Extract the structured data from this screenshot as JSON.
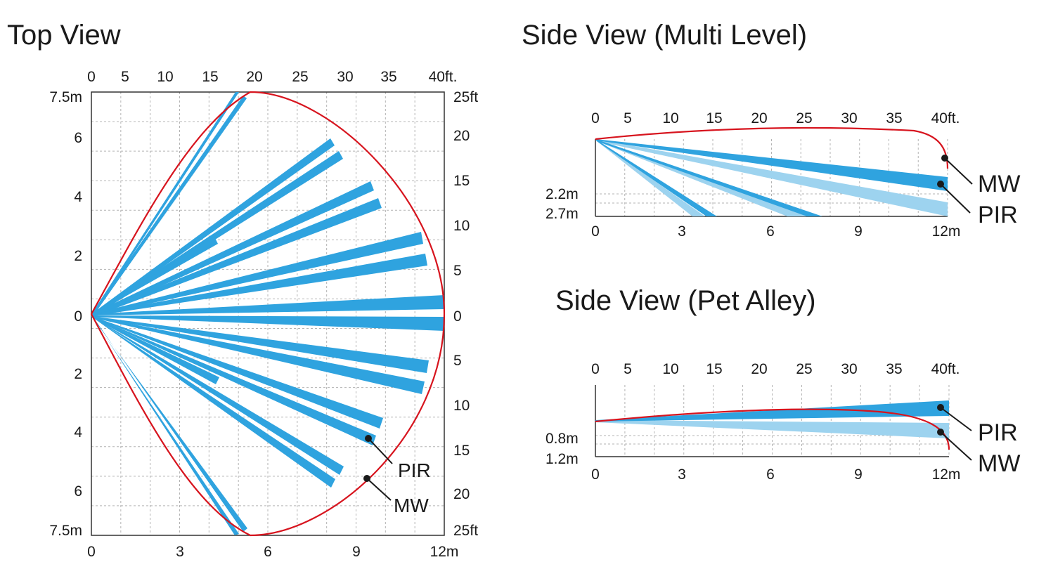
{
  "titles": {
    "top": "Top View",
    "multi": "Side View (Multi Level)",
    "pet": "Side View (Pet Alley)"
  },
  "colors": {
    "pir_dark": "#2fa3df",
    "pir_light": "#9dd3ef",
    "mw_line": "#d7141e",
    "grid": "#b3b3b3",
    "axis": "#333333",
    "text": "#1a1a1a"
  },
  "top_view": {
    "ft_ticks": [
      "0",
      "5",
      "10",
      "15",
      "20",
      "25",
      "30",
      "35",
      "40ft."
    ],
    "m_ticks": [
      "0",
      "3",
      "6",
      "9",
      "12m"
    ],
    "left_ticks": [
      "7.5m",
      "6",
      "4",
      "2",
      "0",
      "2",
      "4",
      "6",
      "7.5m"
    ],
    "right_ticks": [
      "25ft",
      "20",
      "15",
      "10",
      "5",
      "0",
      "5",
      "10",
      "15",
      "20",
      "25ft"
    ],
    "labels": {
      "pir": "PIR",
      "mw": "MW"
    }
  },
  "multi_view": {
    "ft_ticks": [
      "0",
      "5",
      "10",
      "15",
      "20",
      "25",
      "30",
      "35",
      "40ft."
    ],
    "m_ticks": [
      "0",
      "3",
      "6",
      "9",
      "12m"
    ],
    "heights": [
      "2.2m",
      "2.7m"
    ],
    "labels": {
      "mw": "MW",
      "pir": "PIR"
    }
  },
  "pet_view": {
    "ft_ticks": [
      "0",
      "5",
      "10",
      "15",
      "20",
      "25",
      "30",
      "35",
      "40ft."
    ],
    "m_ticks": [
      "0",
      "3",
      "6",
      "9",
      "12m"
    ],
    "heights": [
      "0.8m",
      "1.2m"
    ],
    "labels": {
      "pir": "PIR",
      "mw": "MW"
    }
  }
}
